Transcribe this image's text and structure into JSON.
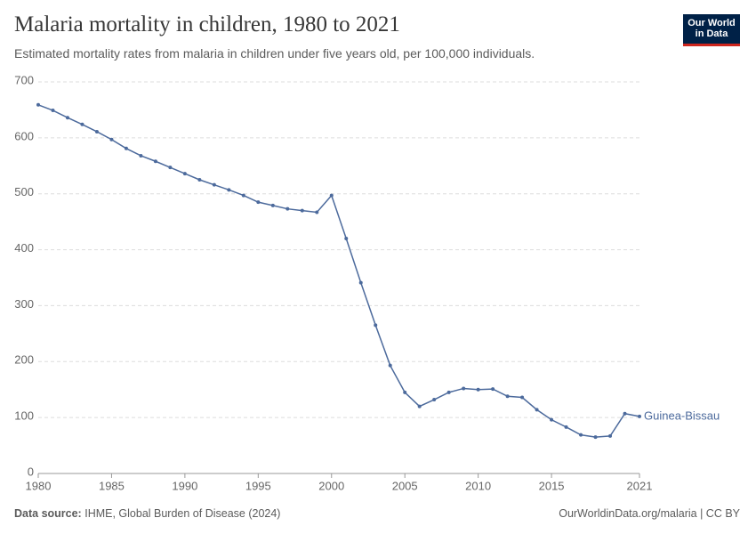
{
  "chart_data": {
    "type": "line",
    "title": "Malaria mortality in children, 1980 to 2021",
    "subtitle": "Estimated mortality rates from malaria in children under five years old, per 100,000 individuals.",
    "logo": [
      "Our World",
      "in Data"
    ],
    "source_label": "Data source:",
    "source": "IHME, Global Burden of Disease (2024)",
    "credit": "OurWorldinData.org/malaria | CC BY",
    "x": [
      1980,
      1981,
      1982,
      1983,
      1984,
      1985,
      1986,
      1987,
      1988,
      1989,
      1990,
      1991,
      1992,
      1993,
      1994,
      1995,
      1996,
      1997,
      1998,
      1999,
      2000,
      2001,
      2002,
      2003,
      2004,
      2005,
      2006,
      2007,
      2008,
      2009,
      2010,
      2011,
      2012,
      2013,
      2014,
      2015,
      2016,
      2017,
      2018,
      2019,
      2020,
      2021
    ],
    "series": [
      {
        "name": "Guinea-Bissau",
        "color": "#4c6a9c",
        "values": [
          659,
          649,
          636,
          624,
          611,
          597,
          581,
          568,
          558,
          547,
          536,
          525,
          516,
          507,
          497,
          485,
          479,
          473,
          470,
          467,
          497,
          420,
          341,
          265,
          193,
          145,
          120,
          132,
          145,
          152,
          150,
          151,
          138,
          136,
          114,
          96,
          83,
          69,
          65,
          67,
          107,
          102
        ]
      }
    ],
    "xlim": [
      1980,
      2021
    ],
    "xticks": [
      1980,
      1985,
      1990,
      1995,
      2000,
      2005,
      2010,
      2015,
      2021
    ],
    "ylim": [
      0,
      700
    ],
    "yticks": [
      0,
      100,
      200,
      300,
      400,
      500,
      600,
      700
    ],
    "grid": true
  }
}
